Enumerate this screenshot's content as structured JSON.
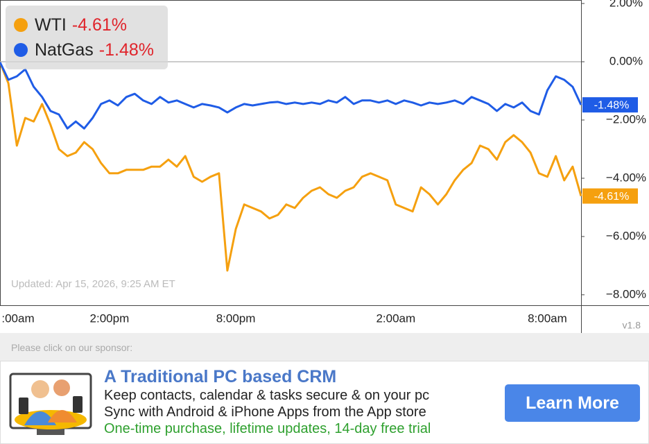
{
  "chart_data": {
    "type": "line",
    "categories": [
      ":00am",
      null,
      null,
      null,
      null,
      null,
      null,
      null,
      null,
      null,
      null,
      null,
      null,
      "2:00pm",
      null,
      null,
      null,
      null,
      null,
      null,
      null,
      null,
      null,
      null,
      null,
      null,
      null,
      null,
      "8:00pm",
      null,
      null,
      null,
      null,
      null,
      null,
      null,
      null,
      null,
      null,
      null,
      null,
      null,
      null,
      null,
      null,
      null,
      null,
      "2:00am",
      null,
      null,
      null,
      null,
      null,
      null,
      null,
      null,
      null,
      null,
      null,
      null,
      null,
      null,
      null,
      null,
      null,
      "8:00am",
      null,
      null,
      null,
      null
    ],
    "series": [
      {
        "name": "WTI",
        "color": "#f5a00f",
        "last_value_label": "-4.61%",
        "values": [
          -0.02,
          -0.74,
          -2.88,
          -1.93,
          -2.05,
          -1.45,
          -2.17,
          -3.0,
          -3.24,
          -3.12,
          -2.76,
          -3.0,
          -3.48,
          -3.83,
          -3.83,
          -3.71,
          -3.71,
          -3.71,
          -3.6,
          -3.6,
          -3.36,
          -3.6,
          -3.24,
          -3.95,
          -4.12,
          -3.95,
          -3.83,
          -7.17,
          -5.74,
          -4.9,
          -5.02,
          -5.14,
          -5.38,
          -5.26,
          -4.9,
          -5.02,
          -4.67,
          -4.43,
          -4.31,
          -4.55,
          -4.67,
          -4.43,
          -4.31,
          -3.95,
          -3.83,
          -3.95,
          -4.07,
          -4.9,
          -5.02,
          -5.14,
          -4.31,
          -4.55,
          -4.9,
          -4.55,
          -4.07,
          -3.71,
          -3.48,
          -2.88,
          -3.0,
          -3.36,
          -2.76,
          -2.52,
          -2.76,
          -3.12,
          -3.83,
          -3.95,
          -3.24,
          -4.07,
          -3.6,
          -4.61
        ]
      },
      {
        "name": "NatGas",
        "color": "#1f5ce6",
        "last_value_label": "-1.48%",
        "values": [
          -0.02,
          -0.62,
          -0.5,
          -0.26,
          -0.86,
          -1.21,
          -1.69,
          -1.81,
          -2.29,
          -2.05,
          -2.29,
          -1.93,
          -1.45,
          -1.33,
          -1.5,
          -1.21,
          -1.1,
          -1.33,
          -1.45,
          -1.21,
          -1.4,
          -1.33,
          -1.45,
          -1.57,
          -1.45,
          -1.5,
          -1.57,
          -1.74,
          -1.57,
          -1.45,
          -1.5,
          -1.45,
          -1.4,
          -1.38,
          -1.45,
          -1.4,
          -1.45,
          -1.4,
          -1.45,
          -1.33,
          -1.4,
          -1.21,
          -1.45,
          -1.33,
          -1.33,
          -1.4,
          -1.33,
          -1.45,
          -1.33,
          -1.4,
          -1.5,
          -1.4,
          -1.45,
          -1.4,
          -1.33,
          -1.45,
          -1.21,
          -1.33,
          -1.45,
          -1.69,
          -1.45,
          -1.57,
          -1.4,
          -1.69,
          -1.81,
          -0.98,
          -0.5,
          -0.62,
          -0.86,
          -1.48
        ]
      }
    ],
    "ylim": [
      -8.36,
      2.12
    ],
    "yticks": [
      {
        "value": 2,
        "label": "2.00%"
      },
      {
        "value": 0,
        "label": "0.00%"
      },
      {
        "value": -2,
        "label": "−2.00%"
      },
      {
        "value": -4,
        "label": "−4.00%"
      },
      {
        "value": -6,
        "label": "−6.00%"
      },
      {
        "value": -8,
        "label": "−8.00%"
      }
    ],
    "zero_line": true,
    "updated_note": "Updated: Apr 15, 2026, 9:25 AM ET",
    "version": "v1.8"
  },
  "sponsor": {
    "note": "Please click on our sponsor:",
    "title": "A Traditional PC based CRM",
    "line1": "Keep contacts, calendar & tasks secure & on your pc",
    "line2": "Sync with Android & iPhone Apps from the App store",
    "line3": "One-time purchase, lifetime updates, 14-day free trial",
    "button": "Learn More"
  }
}
